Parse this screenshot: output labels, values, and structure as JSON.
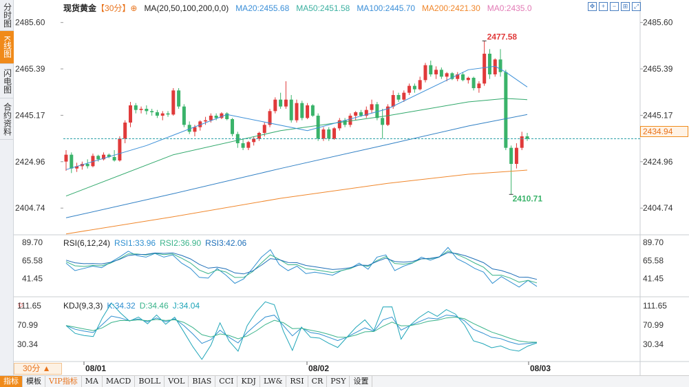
{
  "side_tabs": [
    {
      "label": "分时图",
      "active": false
    },
    {
      "label": "K线图",
      "active": true
    },
    {
      "label": "闪电图",
      "active": false
    },
    {
      "label": "合约资料",
      "active": false
    }
  ],
  "header": {
    "symbol": "现货黄金",
    "period": "【30分】",
    "ma_params": "MA(20,50,100,200,0,0)",
    "ma20": "MA20:2455.68",
    "ma50": "MA50:2451.58",
    "ma100": "MA100:2445.70",
    "ma200": "MA200:2421.30",
    "ma0": "MA0:2435.0"
  },
  "colors": {
    "up": "#e03a3a",
    "down": "#3ab36a",
    "ma20": "#3b8fd8",
    "ma50": "#2fa86a",
    "ma100": "#2f7fc4",
    "ma200": "#f0862a",
    "ma0": "#e27ab5",
    "current_line": "#2aa0a8",
    "rsi1": "#2f8fd0",
    "rsi2": "#39b38a",
    "rsi3": "#1e6fb8",
    "k": "#2f8fd0",
    "d": "#39b38a",
    "j": "#1ea5b8"
  },
  "toolbar_icons": [
    "move-icon",
    "zoom-in-icon",
    "zoom-out-icon",
    "fit-icon",
    "fullscreen-icon"
  ],
  "price_axis": {
    "labels": [
      "2485.60",
      "2465.39",
      "2445.17",
      "2424.96",
      "2404.74"
    ],
    "current": "2434.94",
    "high_label": "2477.58",
    "low_label": "2410.71"
  },
  "rsi": {
    "title": "RSI(6,12,24)",
    "rsi1": "RSI1:33.96",
    "rsi2": "RSI2:36.90",
    "rsi3": "RSI3:42.06",
    "axis": [
      "89.70",
      "65.58",
      "41.45"
    ]
  },
  "kdj": {
    "title": "KDJ(9,3,3)",
    "k": "K:34.32",
    "d": "D:34.46",
    "j": "J:34.04",
    "axis": [
      "111.65",
      "70.99",
      "30.34"
    ]
  },
  "time_axis": [
    "08/01",
    "08/02",
    "08/03"
  ],
  "period_button": "30分 ▲",
  "bottom_tabs": [
    {
      "label": "指标",
      "active": true
    },
    {
      "label": "模板",
      "active": false
    },
    {
      "label": "VIP指标",
      "active": false,
      "vip": true
    },
    {
      "label": "MA",
      "active": false
    },
    {
      "label": "MACD",
      "active": false
    },
    {
      "label": "BOLL",
      "active": false
    },
    {
      "label": "VOL",
      "active": false
    },
    {
      "label": "BIAS",
      "active": false
    },
    {
      "label": "CCI",
      "active": false
    },
    {
      "label": "KDJ",
      "active": false
    },
    {
      "label": "LW&",
      "active": false
    },
    {
      "label": "RSI",
      "active": false
    },
    {
      "label": "CR",
      "active": false
    },
    {
      "label": "PSY",
      "active": false
    },
    {
      "label": "设置",
      "active": false
    }
  ],
  "chart_data": {
    "type": "candlestick",
    "price_range": [
      2394.0,
      2490.0
    ],
    "candles": [
      [
        2425.0,
        2430.0,
        2421.0,
        2428.0
      ],
      [
        2428.0,
        2429.0,
        2420.0,
        2422.0
      ],
      [
        2422.0,
        2424.5,
        2420.5,
        2423.0
      ],
      [
        2423.0,
        2425.0,
        2421.5,
        2424.0
      ],
      [
        2424.0,
        2426.0,
        2422.0,
        2423.0
      ],
      [
        2423.0,
        2428.5,
        2422.5,
        2427.5
      ],
      [
        2427.5,
        2428.0,
        2425.0,
        2426.0
      ],
      [
        2426.0,
        2429.0,
        2425.5,
        2428.0
      ],
      [
        2428.0,
        2428.5,
        2426.5,
        2427.0
      ],
      [
        2427.0,
        2430.0,
        2425.0,
        2425.5
      ],
      [
        2425.5,
        2436.0,
        2425.0,
        2435.0
      ],
      [
        2435.0,
        2443.0,
        2433.0,
        2442.0
      ],
      [
        2442.0,
        2451.0,
        2440.0,
        2449.5
      ],
      [
        2449.5,
        2450.5,
        2446.0,
        2447.5
      ],
      [
        2447.5,
        2449.0,
        2446.0,
        2448.0
      ],
      [
        2448.0,
        2449.5,
        2445.5,
        2447.0
      ],
      [
        2447.0,
        2448.0,
        2445.0,
        2446.5
      ],
      [
        2446.5,
        2447.5,
        2444.0,
        2445.0
      ],
      [
        2445.0,
        2447.0,
        2443.0,
        2446.0
      ],
      [
        2446.0,
        2447.0,
        2444.5,
        2445.5
      ],
      [
        2445.5,
        2457.0,
        2445.0,
        2456.0
      ],
      [
        2456.0,
        2457.0,
        2448.0,
        2449.0
      ],
      [
        2449.0,
        2450.0,
        2440.0,
        2441.0
      ],
      [
        2441.0,
        2442.5,
        2437.0,
        2438.0
      ],
      [
        2438.0,
        2441.0,
        2436.0,
        2440.0
      ],
      [
        2440.0,
        2443.0,
        2438.5,
        2442.5
      ],
      [
        2442.5,
        2444.5,
        2441.0,
        2443.0
      ],
      [
        2443.0,
        2446.0,
        2442.0,
        2445.0
      ],
      [
        2445.0,
        2446.0,
        2443.0,
        2444.0
      ],
      [
        2444.0,
        2446.5,
        2443.5,
        2446.0
      ],
      [
        2446.0,
        2446.5,
        2443.0,
        2443.5
      ],
      [
        2443.5,
        2444.0,
        2436.0,
        2437.0
      ],
      [
        2437.0,
        2438.0,
        2431.0,
        2433.0
      ],
      [
        2433.0,
        2435.0,
        2430.0,
        2431.0
      ],
      [
        2431.0,
        2434.0,
        2430.0,
        2433.5
      ],
      [
        2433.5,
        2436.0,
        2432.0,
        2435.0
      ],
      [
        2435.0,
        2438.0,
        2434.0,
        2437.5
      ],
      [
        2437.5,
        2442.0,
        2436.0,
        2441.0
      ],
      [
        2441.0,
        2448.0,
        2440.0,
        2447.0
      ],
      [
        2447.0,
        2453.0,
        2446.0,
        2452.0
      ],
      [
        2452.0,
        2455.0,
        2448.0,
        2449.0
      ],
      [
        2449.0,
        2460.0,
        2448.0,
        2452.0
      ],
      [
        2452.0,
        2454.0,
        2442.0,
        2443.0
      ],
      [
        2443.0,
        2452.0,
        2442.0,
        2450.5
      ],
      [
        2450.5,
        2451.5,
        2443.0,
        2444.0
      ],
      [
        2444.0,
        2450.5,
        2443.5,
        2449.5
      ],
      [
        2449.5,
        2450.0,
        2444.5,
        2445.0
      ],
      [
        2445.0,
        2446.0,
        2434.0,
        2435.0
      ],
      [
        2435.0,
        2440.0,
        2434.0,
        2439.0
      ],
      [
        2439.0,
        2440.0,
        2434.0,
        2435.0
      ],
      [
        2435.0,
        2440.0,
        2434.5,
        2439.5
      ],
      [
        2439.5,
        2444.0,
        2438.5,
        2443.0
      ],
      [
        2443.0,
        2444.0,
        2440.0,
        2441.0
      ],
      [
        2441.0,
        2446.0,
        2440.0,
        2445.0
      ],
      [
        2445.0,
        2447.0,
        2443.0,
        2446.5
      ],
      [
        2446.5,
        2447.5,
        2444.5,
        2445.0
      ],
      [
        2445.0,
        2449.0,
        2444.0,
        2447.5
      ],
      [
        2447.5,
        2452.0,
        2446.0,
        2450.0
      ],
      [
        2450.0,
        2451.0,
        2443.0,
        2444.0
      ],
      [
        2444.0,
        2448.0,
        2435.0,
        2441.0
      ],
      [
        2441.0,
        2450.0,
        2440.5,
        2449.0
      ],
      [
        2449.0,
        2456.0,
        2448.0,
        2454.0
      ],
      [
        2454.0,
        2455.0,
        2451.0,
        2452.0
      ],
      [
        2452.0,
        2456.0,
        2451.0,
        2455.0
      ],
      [
        2455.0,
        2459.0,
        2454.0,
        2458.0
      ],
      [
        2458.0,
        2459.0,
        2455.0,
        2456.5
      ],
      [
        2456.5,
        2462.0,
        2456.0,
        2460.5
      ],
      [
        2460.5,
        2468.0,
        2459.5,
        2467.0
      ],
      [
        2467.0,
        2469.0,
        2462.0,
        2463.0
      ],
      [
        2463.0,
        2466.5,
        2461.0,
        2465.0
      ],
      [
        2465.0,
        2466.0,
        2461.0,
        2462.0
      ],
      [
        2462.0,
        2464.0,
        2460.0,
        2463.5
      ],
      [
        2463.5,
        2464.0,
        2460.5,
        2461.0
      ],
      [
        2461.0,
        2464.0,
        2460.0,
        2463.0
      ],
      [
        2463.0,
        2464.0,
        2460.0,
        2460.5
      ],
      [
        2460.5,
        2462.0,
        2459.0,
        2461.5
      ],
      [
        2461.5,
        2462.0,
        2456.0,
        2457.0
      ],
      [
        2457.0,
        2460.0,
        2455.0,
        2459.0
      ],
      [
        2459.0,
        2477.58,
        2458.0,
        2472.0
      ],
      [
        2472.0,
        2474.0,
        2461.0,
        2463.0
      ],
      [
        2463.0,
        2470.0,
        2462.0,
        2469.5
      ],
      [
        2469.5,
        2474.0,
        2462.0,
        2464.0
      ],
      [
        2464.0,
        2465.0,
        2430.0,
        2431.0
      ],
      [
        2431.0,
        2432.0,
        2410.71,
        2424.0
      ],
      [
        2424.0,
        2433.0,
        2422.0,
        2431.0
      ],
      [
        2431.0,
        2438.0,
        2430.0,
        2436.0
      ],
      [
        2436.0,
        2437.5,
        2434.0,
        2434.94
      ]
    ],
    "ma20": [
      [
        0,
        2421.5
      ],
      [
        15,
        2432.0
      ],
      [
        30,
        2445.5
      ],
      [
        45,
        2438.5
      ],
      [
        60,
        2448.0
      ],
      [
        75,
        2465.0
      ],
      [
        80,
        2466.5
      ],
      [
        82,
        2464.0
      ],
      [
        86,
        2457.5
      ]
    ],
    "ma50": [
      [
        0,
        2410.0
      ],
      [
        20,
        2428.0
      ],
      [
        40,
        2438.5
      ],
      [
        60,
        2445.0
      ],
      [
        75,
        2451.0
      ],
      [
        82,
        2452.5
      ],
      [
        86,
        2452.0
      ]
    ],
    "ma100": [
      [
        0,
        2400.5
      ],
      [
        20,
        2411.0
      ],
      [
        40,
        2422.0
      ],
      [
        60,
        2432.5
      ],
      [
        75,
        2440.5
      ],
      [
        86,
        2445.5
      ]
    ],
    "ma200": [
      [
        0,
        2393.5
      ],
      [
        20,
        2401.0
      ],
      [
        40,
        2409.0
      ],
      [
        60,
        2415.5
      ],
      [
        75,
        2419.5
      ],
      [
        86,
        2421.3
      ]
    ],
    "rsi1": [
      62,
      52,
      55,
      58,
      56,
      63,
      70,
      78,
      72,
      70,
      75,
      70,
      73,
      62,
      55,
      43,
      42,
      55,
      46,
      35,
      41,
      55,
      70,
      80,
      60,
      52,
      58,
      48,
      50,
      48,
      46,
      52,
      55,
      62,
      54,
      70,
      73,
      52,
      58,
      62,
      70,
      66,
      70,
      83,
      68,
      62,
      55,
      50,
      35,
      44,
      37,
      30,
      39,
      31
    ],
    "kdj_k": [
      70,
      62,
      58,
      55,
      72,
      90,
      86,
      80,
      84,
      78,
      86,
      78,
      84,
      70,
      52,
      32,
      40,
      60,
      45,
      33,
      55,
      72,
      88,
      92,
      70,
      48,
      65,
      55,
      52,
      45,
      38,
      45,
      55,
      65,
      58,
      82,
      88,
      60,
      70,
      78,
      86,
      84,
      92,
      90,
      80,
      62,
      54,
      45,
      42,
      35,
      30,
      32,
      34
    ]
  }
}
